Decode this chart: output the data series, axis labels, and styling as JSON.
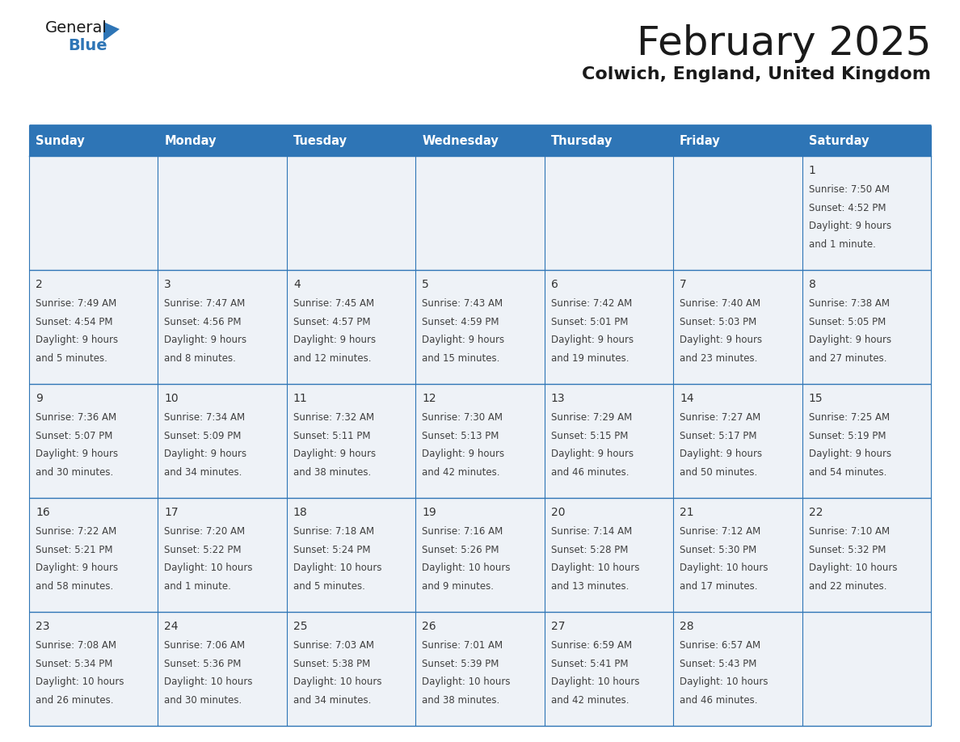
{
  "title": "February 2025",
  "subtitle": "Colwich, England, United Kingdom",
  "days_of_week": [
    "Sunday",
    "Monday",
    "Tuesday",
    "Wednesday",
    "Thursday",
    "Friday",
    "Saturday"
  ],
  "header_bg": "#2e75b6",
  "header_text": "#ffffff",
  "cell_bg": "#eef2f7",
  "cell_bg_white": "#ffffff",
  "border_color": "#2e75b6",
  "title_color": "#1a1a1a",
  "subtitle_color": "#1a1a1a",
  "cell_text_color": "#404040",
  "day_num_color": "#333333",
  "logo_general_color": "#1a1a1a",
  "logo_blue_color": "#2e75b6",
  "calendar_data": {
    "1": {
      "col": 6,
      "row": 0,
      "sunrise": "7:50 AM",
      "sunset": "4:52 PM",
      "daylight": "9 hours and 1 minute."
    },
    "2": {
      "col": 0,
      "row": 1,
      "sunrise": "7:49 AM",
      "sunset": "4:54 PM",
      "daylight": "9 hours and 5 minutes."
    },
    "3": {
      "col": 1,
      "row": 1,
      "sunrise": "7:47 AM",
      "sunset": "4:56 PM",
      "daylight": "9 hours and 8 minutes."
    },
    "4": {
      "col": 2,
      "row": 1,
      "sunrise": "7:45 AM",
      "sunset": "4:57 PM",
      "daylight": "9 hours and 12 minutes."
    },
    "5": {
      "col": 3,
      "row": 1,
      "sunrise": "7:43 AM",
      "sunset": "4:59 PM",
      "daylight": "9 hours and 15 minutes."
    },
    "6": {
      "col": 4,
      "row": 1,
      "sunrise": "7:42 AM",
      "sunset": "5:01 PM",
      "daylight": "9 hours and 19 minutes."
    },
    "7": {
      "col": 5,
      "row": 1,
      "sunrise": "7:40 AM",
      "sunset": "5:03 PM",
      "daylight": "9 hours and 23 minutes."
    },
    "8": {
      "col": 6,
      "row": 1,
      "sunrise": "7:38 AM",
      "sunset": "5:05 PM",
      "daylight": "9 hours and 27 minutes."
    },
    "9": {
      "col": 0,
      "row": 2,
      "sunrise": "7:36 AM",
      "sunset": "5:07 PM",
      "daylight": "9 hours and 30 minutes."
    },
    "10": {
      "col": 1,
      "row": 2,
      "sunrise": "7:34 AM",
      "sunset": "5:09 PM",
      "daylight": "9 hours and 34 minutes."
    },
    "11": {
      "col": 2,
      "row": 2,
      "sunrise": "7:32 AM",
      "sunset": "5:11 PM",
      "daylight": "9 hours and 38 minutes."
    },
    "12": {
      "col": 3,
      "row": 2,
      "sunrise": "7:30 AM",
      "sunset": "5:13 PM",
      "daylight": "9 hours and 42 minutes."
    },
    "13": {
      "col": 4,
      "row": 2,
      "sunrise": "7:29 AM",
      "sunset": "5:15 PM",
      "daylight": "9 hours and 46 minutes."
    },
    "14": {
      "col": 5,
      "row": 2,
      "sunrise": "7:27 AM",
      "sunset": "5:17 PM",
      "daylight": "9 hours and 50 minutes."
    },
    "15": {
      "col": 6,
      "row": 2,
      "sunrise": "7:25 AM",
      "sunset": "5:19 PM",
      "daylight": "9 hours and 54 minutes."
    },
    "16": {
      "col": 0,
      "row": 3,
      "sunrise": "7:22 AM",
      "sunset": "5:21 PM",
      "daylight": "9 hours and 58 minutes."
    },
    "17": {
      "col": 1,
      "row": 3,
      "sunrise": "7:20 AM",
      "sunset": "5:22 PM",
      "daylight": "10 hours and 1 minute."
    },
    "18": {
      "col": 2,
      "row": 3,
      "sunrise": "7:18 AM",
      "sunset": "5:24 PM",
      "daylight": "10 hours and 5 minutes."
    },
    "19": {
      "col": 3,
      "row": 3,
      "sunrise": "7:16 AM",
      "sunset": "5:26 PM",
      "daylight": "10 hours and 9 minutes."
    },
    "20": {
      "col": 4,
      "row": 3,
      "sunrise": "7:14 AM",
      "sunset": "5:28 PM",
      "daylight": "10 hours and 13 minutes."
    },
    "21": {
      "col": 5,
      "row": 3,
      "sunrise": "7:12 AM",
      "sunset": "5:30 PM",
      "daylight": "10 hours and 17 minutes."
    },
    "22": {
      "col": 6,
      "row": 3,
      "sunrise": "7:10 AM",
      "sunset": "5:32 PM",
      "daylight": "10 hours and 22 minutes."
    },
    "23": {
      "col": 0,
      "row": 4,
      "sunrise": "7:08 AM",
      "sunset": "5:34 PM",
      "daylight": "10 hours and 26 minutes."
    },
    "24": {
      "col": 1,
      "row": 4,
      "sunrise": "7:06 AM",
      "sunset": "5:36 PM",
      "daylight": "10 hours and 30 minutes."
    },
    "25": {
      "col": 2,
      "row": 4,
      "sunrise": "7:03 AM",
      "sunset": "5:38 PM",
      "daylight": "10 hours and 34 minutes."
    },
    "26": {
      "col": 3,
      "row": 4,
      "sunrise": "7:01 AM",
      "sunset": "5:39 PM",
      "daylight": "10 hours and 38 minutes."
    },
    "27": {
      "col": 4,
      "row": 4,
      "sunrise": "6:59 AM",
      "sunset": "5:41 PM",
      "daylight": "10 hours and 42 minutes."
    },
    "28": {
      "col": 5,
      "row": 4,
      "sunrise": "6:57 AM",
      "sunset": "5:43 PM",
      "daylight": "10 hours and 46 minutes."
    }
  },
  "num_rows": 5,
  "num_cols": 7
}
